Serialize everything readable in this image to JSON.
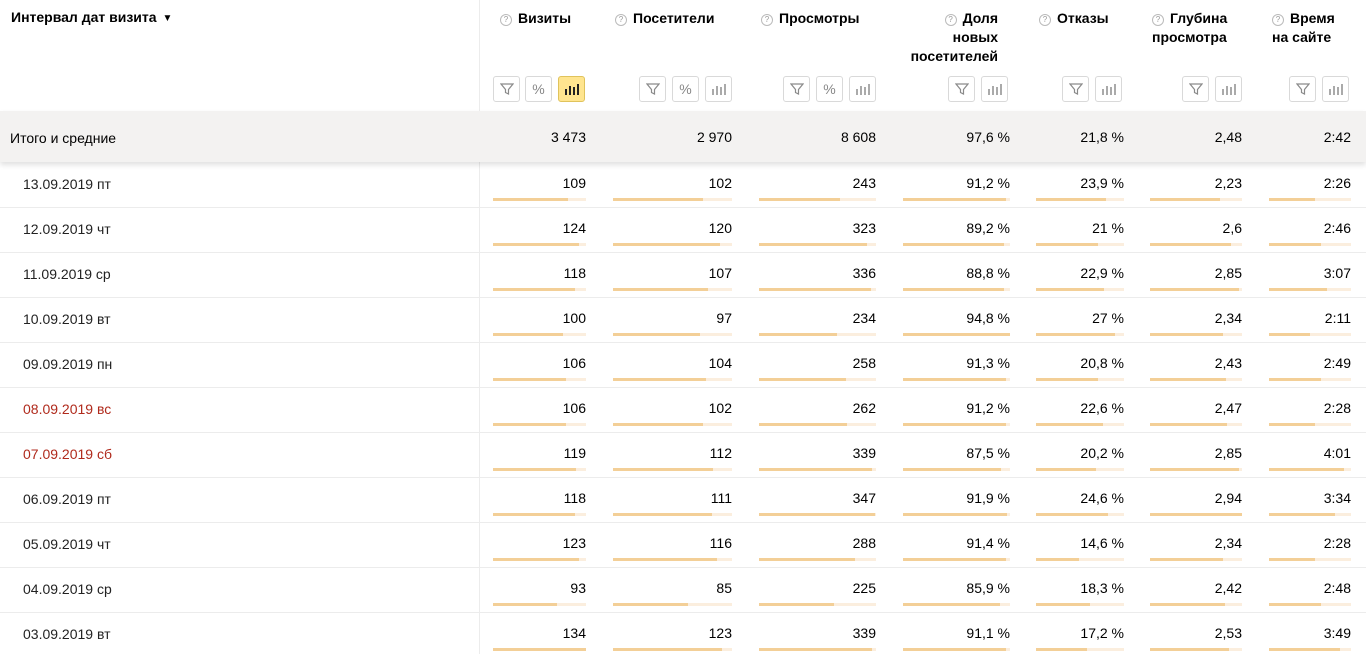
{
  "header": {
    "dimension_label": "Интервал дат визита",
    "sort_arrow": "▼",
    "help_glyph": "?",
    "metrics": [
      {
        "label": "Визиты",
        "toolbar": [
          "filter-icon",
          "percent-icon",
          "bars-icon"
        ],
        "active": "bars-icon"
      },
      {
        "label": "Посетители",
        "toolbar": [
          "filter-icon",
          "percent-icon",
          "bars-icon"
        ],
        "active": null
      },
      {
        "label": "Просмотры",
        "toolbar": [
          "filter-icon",
          "percent-icon",
          "bars-icon"
        ],
        "active": null
      },
      {
        "label": "Доля новых посетителей",
        "toolbar": [
          "filter-icon",
          "bars-icon"
        ],
        "active": null
      },
      {
        "label": "Отказы",
        "toolbar": [
          "filter-icon",
          "bars-icon"
        ],
        "active": null
      },
      {
        "label": "Глубина просмотра",
        "toolbar": [
          "filter-icon",
          "bars-icon"
        ],
        "active": null
      },
      {
        "label": "Время на сайте",
        "toolbar": [
          "filter-icon",
          "bars-icon"
        ],
        "active": null
      }
    ]
  },
  "totals": {
    "label": "Итого и средние",
    "values": [
      "3 473",
      "2 970",
      "8 608",
      "97,6 %",
      "21,8 %",
      "2,48",
      "2:42"
    ]
  },
  "rows": [
    {
      "date": "13.09.2019 пт",
      "weekend": false,
      "values": [
        "109",
        "102",
        "243",
        "91,2 %",
        "23,9 %",
        "2,23",
        "2:26"
      ],
      "fill": [
        0.81,
        0.76,
        0.69,
        0.96,
        0.8,
        0.76,
        0.56
      ]
    },
    {
      "date": "12.09.2019 чт",
      "weekend": false,
      "values": [
        "124",
        "120",
        "323",
        "89,2 %",
        "21 %",
        "2,6",
        "2:46"
      ],
      "fill": [
        0.92,
        0.9,
        0.92,
        0.94,
        0.7,
        0.88,
        0.63
      ]
    },
    {
      "date": "11.09.2019 ср",
      "weekend": false,
      "values": [
        "118",
        "107",
        "336",
        "88,8 %",
        "22,9 %",
        "2,85",
        "3:07"
      ],
      "fill": [
        0.88,
        0.8,
        0.96,
        0.94,
        0.77,
        0.97,
        0.71
      ]
    },
    {
      "date": "10.09.2019 вт",
      "weekend": false,
      "values": [
        "100",
        "97",
        "234",
        "94,8 %",
        "27 %",
        "2,34",
        "2:11"
      ],
      "fill": [
        0.75,
        0.73,
        0.67,
        1.0,
        0.9,
        0.79,
        0.5
      ]
    },
    {
      "date": "09.09.2019 пн",
      "weekend": false,
      "values": [
        "106",
        "104",
        "258",
        "91,3 %",
        "20,8 %",
        "2,43",
        "2:49"
      ],
      "fill": [
        0.79,
        0.78,
        0.74,
        0.96,
        0.7,
        0.83,
        0.64
      ]
    },
    {
      "date": "08.09.2019 вс",
      "weekend": true,
      "values": [
        "106",
        "102",
        "262",
        "91,2 %",
        "22,6 %",
        "2,47",
        "2:28"
      ],
      "fill": [
        0.79,
        0.76,
        0.75,
        0.96,
        0.76,
        0.84,
        0.56
      ]
    },
    {
      "date": "07.09.2019 сб",
      "weekend": true,
      "values": [
        "119",
        "112",
        "339",
        "87,5 %",
        "20,2 %",
        "2,85",
        "4:01"
      ],
      "fill": [
        0.89,
        0.84,
        0.97,
        0.92,
        0.68,
        0.97,
        0.91
      ]
    },
    {
      "date": "06.09.2019 пт",
      "weekend": false,
      "values": [
        "118",
        "111",
        "347",
        "91,9 %",
        "24,6 %",
        "2,94",
        "3:34"
      ],
      "fill": [
        0.88,
        0.83,
        0.99,
        0.97,
        0.82,
        1.0,
        0.81
      ]
    },
    {
      "date": "05.09.2019 чт",
      "weekend": false,
      "values": [
        "123",
        "116",
        "288",
        "91,4 %",
        "14,6 %",
        "2,34",
        "2:28"
      ],
      "fill": [
        0.92,
        0.87,
        0.82,
        0.96,
        0.49,
        0.79,
        0.56
      ]
    },
    {
      "date": "04.09.2019 ср",
      "weekend": false,
      "values": [
        "93",
        "85",
        "225",
        "85,9 %",
        "18,3 %",
        "2,42",
        "2:48"
      ],
      "fill": [
        0.69,
        0.63,
        0.64,
        0.91,
        0.61,
        0.82,
        0.64
      ]
    },
    {
      "date": "03.09.2019 вт",
      "weekend": false,
      "values": [
        "134",
        "123",
        "339",
        "91,1 %",
        "17,2 %",
        "2,53",
        "3:49"
      ],
      "fill": [
        1.0,
        0.92,
        0.97,
        0.96,
        0.58,
        0.86,
        0.87
      ]
    }
  ],
  "colors": {
    "weekend_text": "#b02a1c",
    "bar_fill": "#f3cf97",
    "bar_track": "#fbeede",
    "active_button": "#ffe58f",
    "totals_bg": "#f3f2f1"
  }
}
